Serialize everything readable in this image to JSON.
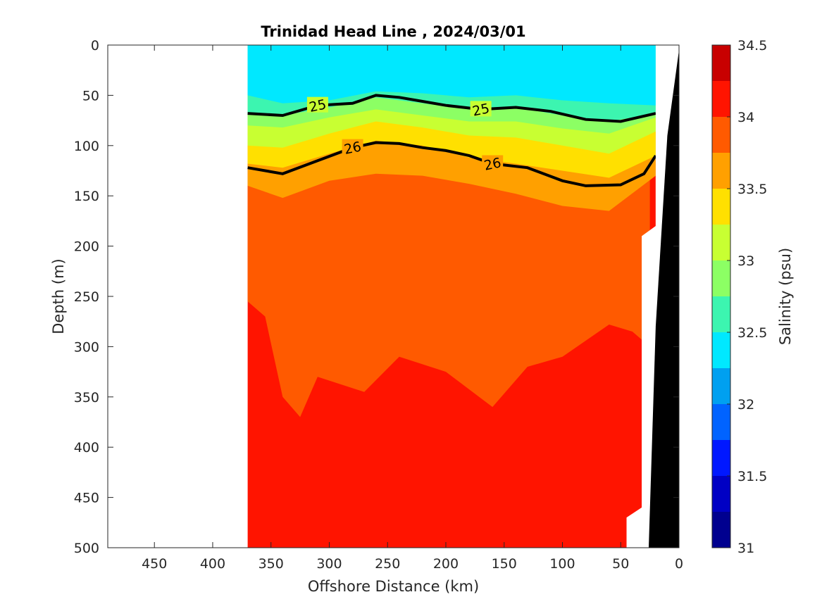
{
  "chart_data": {
    "type": "contour",
    "title": "Trinidad Head Line , 2024/03/01",
    "xlabel": "Offshore Distance (km)",
    "ylabel": "Depth (m)",
    "xlim": [
      490,
      0
    ],
    "ylim": [
      0,
      500
    ],
    "x_reversed": true,
    "y_reversed": true,
    "xticks": [
      450,
      400,
      350,
      300,
      250,
      200,
      150,
      100,
      50,
      0
    ],
    "yticks": [
      0,
      50,
      100,
      150,
      200,
      250,
      300,
      350,
      400,
      450,
      500
    ],
    "data_extent_km": [
      370,
      20
    ],
    "colorbar": {
      "label": "Salinity (psu)",
      "range": [
        31,
        34.5
      ],
      "step": 0.25,
      "tick_values": [
        31,
        31.5,
        32,
        32.5,
        33,
        33.5,
        34,
        34.5
      ],
      "colors": [
        "#00008f",
        "#0000c4",
        "#0018ff",
        "#0063ff",
        "#00a0f0",
        "#00e8ff",
        "#3cf5b0",
        "#8cff64",
        "#c8ff32",
        "#ffe000",
        "#ffa000",
        "#ff5a00",
        "#ff1400",
        "#c80000"
      ]
    },
    "salinity_layers": [
      {
        "salinity_min": 32.25,
        "salinity_max": 32.5,
        "base_depth": [
          {
            "x": 370,
            "y": 50
          },
          {
            "x": 340,
            "y": 58
          },
          {
            "x": 300,
            "y": 55
          },
          {
            "x": 260,
            "y": 46
          },
          {
            "x": 220,
            "y": 48
          },
          {
            "x": 180,
            "y": 52
          },
          {
            "x": 140,
            "y": 50
          },
          {
            "x": 100,
            "y": 55
          },
          {
            "x": 60,
            "y": 58
          },
          {
            "x": 20,
            "y": 60
          }
        ]
      },
      {
        "salinity_min": 32.5,
        "salinity_max": 32.75,
        "base_depth": [
          {
            "x": 370,
            "y": 68
          },
          {
            "x": 340,
            "y": 70
          },
          {
            "x": 300,
            "y": 62
          },
          {
            "x": 260,
            "y": 52
          },
          {
            "x": 220,
            "y": 58
          },
          {
            "x": 180,
            "y": 64
          },
          {
            "x": 140,
            "y": 62
          },
          {
            "x": 100,
            "y": 70
          },
          {
            "x": 60,
            "y": 76
          },
          {
            "x": 20,
            "y": 68
          }
        ]
      },
      {
        "salinity_min": 32.75,
        "salinity_max": 33.0,
        "base_depth": [
          {
            "x": 370,
            "y": 80
          },
          {
            "x": 340,
            "y": 82
          },
          {
            "x": 300,
            "y": 72
          },
          {
            "x": 260,
            "y": 64
          },
          {
            "x": 220,
            "y": 70
          },
          {
            "x": 180,
            "y": 76
          },
          {
            "x": 140,
            "y": 76
          },
          {
            "x": 100,
            "y": 83
          },
          {
            "x": 60,
            "y": 88
          },
          {
            "x": 20,
            "y": 72
          }
        ]
      },
      {
        "salinity_min": 33.0,
        "salinity_max": 33.25,
        "base_depth": [
          {
            "x": 370,
            "y": 100
          },
          {
            "x": 340,
            "y": 102
          },
          {
            "x": 300,
            "y": 88
          },
          {
            "x": 260,
            "y": 76
          },
          {
            "x": 220,
            "y": 82
          },
          {
            "x": 180,
            "y": 90
          },
          {
            "x": 140,
            "y": 92
          },
          {
            "x": 100,
            "y": 100
          },
          {
            "x": 60,
            "y": 108
          },
          {
            "x": 20,
            "y": 86
          }
        ]
      },
      {
        "salinity_min": 33.25,
        "salinity_max": 33.5,
        "base_depth": [
          {
            "x": 370,
            "y": 118
          },
          {
            "x": 340,
            "y": 122
          },
          {
            "x": 300,
            "y": 108
          },
          {
            "x": 260,
            "y": 95
          },
          {
            "x": 220,
            "y": 100
          },
          {
            "x": 180,
            "y": 112
          },
          {
            "x": 140,
            "y": 118
          },
          {
            "x": 100,
            "y": 125
          },
          {
            "x": 60,
            "y": 132
          },
          {
            "x": 20,
            "y": 110
          }
        ]
      },
      {
        "salinity_min": 33.5,
        "salinity_max": 33.75,
        "base_depth": [
          {
            "x": 370,
            "y": 140
          },
          {
            "x": 340,
            "y": 152
          },
          {
            "x": 300,
            "y": 135
          },
          {
            "x": 260,
            "y": 128
          },
          {
            "x": 220,
            "y": 130
          },
          {
            "x": 180,
            "y": 138
          },
          {
            "x": 140,
            "y": 148
          },
          {
            "x": 100,
            "y": 160
          },
          {
            "x": 60,
            "y": 165
          },
          {
            "x": 20,
            "y": 130
          }
        ]
      },
      {
        "salinity_min": 33.75,
        "salinity_max": 34.0,
        "base_depth": [
          {
            "x": 370,
            "y": 255
          },
          {
            "x": 355,
            "y": 270
          },
          {
            "x": 340,
            "y": 350
          },
          {
            "x": 325,
            "y": 370
          },
          {
            "x": 310,
            "y": 330
          },
          {
            "x": 270,
            "y": 345
          },
          {
            "x": 240,
            "y": 310
          },
          {
            "x": 200,
            "y": 325
          },
          {
            "x": 160,
            "y": 360
          },
          {
            "x": 130,
            "y": 320
          },
          {
            "x": 100,
            "y": 310
          },
          {
            "x": 60,
            "y": 278
          },
          {
            "x": 40,
            "y": 285
          },
          {
            "x": 25,
            "y": 300
          }
        ]
      }
    ],
    "contour_lines": [
      {
        "label": "25",
        "bold": true,
        "points": [
          {
            "x": 370,
            "y": 68
          },
          {
            "x": 340,
            "y": 70
          },
          {
            "x": 310,
            "y": 60
          },
          {
            "x": 280,
            "y": 58
          },
          {
            "x": 260,
            "y": 50
          },
          {
            "x": 240,
            "y": 52
          },
          {
            "x": 220,
            "y": 56
          },
          {
            "x": 200,
            "y": 60
          },
          {
            "x": 170,
            "y": 64
          },
          {
            "x": 140,
            "y": 62
          },
          {
            "x": 110,
            "y": 66
          },
          {
            "x": 80,
            "y": 74
          },
          {
            "x": 50,
            "y": 76
          },
          {
            "x": 20,
            "y": 68
          }
        ]
      },
      {
        "label": "26",
        "bold": true,
        "points": [
          {
            "x": 370,
            "y": 122
          },
          {
            "x": 340,
            "y": 128
          },
          {
            "x": 310,
            "y": 115
          },
          {
            "x": 280,
            "y": 102
          },
          {
            "x": 260,
            "y": 97
          },
          {
            "x": 240,
            "y": 98
          },
          {
            "x": 220,
            "y": 102
          },
          {
            "x": 200,
            "y": 105
          },
          {
            "x": 180,
            "y": 110
          },
          {
            "x": 160,
            "y": 118
          },
          {
            "x": 130,
            "y": 122
          },
          {
            "x": 100,
            "y": 135
          },
          {
            "x": 80,
            "y": 140
          },
          {
            "x": 50,
            "y": 139
          },
          {
            "x": 30,
            "y": 128
          },
          {
            "x": 20,
            "y": 110
          }
        ]
      }
    ]
  }
}
